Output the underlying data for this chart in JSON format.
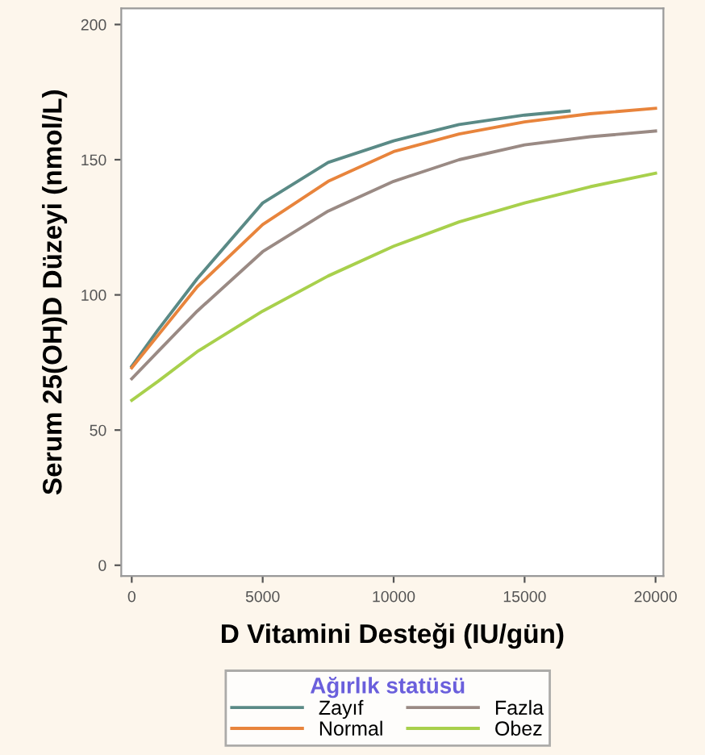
{
  "chart_data": {
    "type": "line",
    "xlabel": "D Vitamini Desteği (IU/gün)",
    "ylabel": "Serum 25(OH)D Düzeyi (nmol/L)",
    "legend_title": "Ağırlık statüsü",
    "legend": "bottom",
    "grid": false,
    "marker": "none",
    "line_style": "solid",
    "xlim": [
      -400,
      20300
    ],
    "ylim": [
      -4,
      206
    ],
    "xticks": [
      0,
      5000,
      10000,
      15000,
      20000
    ],
    "yticks": [
      0,
      50,
      100,
      150,
      200
    ],
    "series": [
      {
        "name": "Zayıf",
        "color": "#5a8a86",
        "x": [
          0,
          1000,
          2500,
          5000,
          7500,
          10000,
          12500,
          15000,
          16700
        ],
        "values": [
          73.6,
          87,
          106,
          134,
          149,
          157,
          163,
          166.5,
          168
        ]
      },
      {
        "name": "Normal",
        "color": "#e8843c",
        "x": [
          0,
          1000,
          2500,
          5000,
          7500,
          10000,
          12500,
          15000,
          17500,
          20000
        ],
        "values": [
          73,
          85,
          103,
          126,
          142,
          153,
          159.5,
          164,
          167,
          169
        ]
      },
      {
        "name": "Fazla",
        "color": "#9a8a84",
        "x": [
          0,
          1000,
          2500,
          5000,
          7500,
          10000,
          12500,
          15000,
          17500,
          20000
        ],
        "values": [
          69,
          79,
          94,
          116,
          131,
          142,
          150,
          155.5,
          158.5,
          160.6
        ]
      },
      {
        "name": "Obez",
        "color": "#a8d04c",
        "x": [
          0,
          1000,
          2500,
          5000,
          7500,
          10000,
          12500,
          15000,
          17500,
          20000
        ],
        "values": [
          61,
          68,
          79,
          94,
          107,
          118,
          127,
          134,
          140,
          145
        ]
      }
    ]
  }
}
